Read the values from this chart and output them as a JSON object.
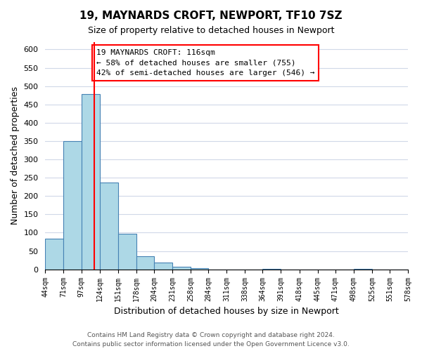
{
  "title": "19, MAYNARDS CROFT, NEWPORT, TF10 7SZ",
  "subtitle": "Size of property relative to detached houses in Newport",
  "xlabel": "Distribution of detached houses by size in Newport",
  "ylabel": "Number of detached properties",
  "bar_edges": [
    44,
    71,
    97,
    124,
    151,
    178,
    204,
    231,
    258,
    284,
    311,
    338,
    364,
    391,
    418,
    445,
    471,
    498,
    525,
    551,
    578
  ],
  "bar_heights": [
    83,
    350,
    478,
    236,
    97,
    35,
    18,
    7,
    4,
    0,
    0,
    0,
    2,
    0,
    0,
    0,
    0,
    2,
    0,
    0
  ],
  "bar_color": "#add8e6",
  "bar_edgecolor": "#4682b4",
  "vline_x": 116,
  "vline_color": "red",
  "ylim": [
    0,
    620
  ],
  "yticks": [
    0,
    50,
    100,
    150,
    200,
    250,
    300,
    350,
    400,
    450,
    500,
    550,
    600
  ],
  "xtick_labels": [
    "44sqm",
    "71sqm",
    "97sqm",
    "124sqm",
    "151sqm",
    "178sqm",
    "204sqm",
    "231sqm",
    "258sqm",
    "284sqm",
    "311sqm",
    "338sqm",
    "364sqm",
    "391sqm",
    "418sqm",
    "445sqm",
    "471sqm",
    "498sqm",
    "525sqm",
    "551sqm",
    "578sqm"
  ],
  "annotation_title": "19 MAYNARDS CROFT: 116sqm",
  "annotation_line1": "← 58% of detached houses are smaller (755)",
  "annotation_line2": "42% of semi-detached houses are larger (546) →",
  "footer1": "Contains HM Land Registry data © Crown copyright and database right 2024.",
  "footer2": "Contains public sector information licensed under the Open Government Licence v3.0.",
  "background_color": "#ffffff",
  "grid_color": "#d0d8e8"
}
